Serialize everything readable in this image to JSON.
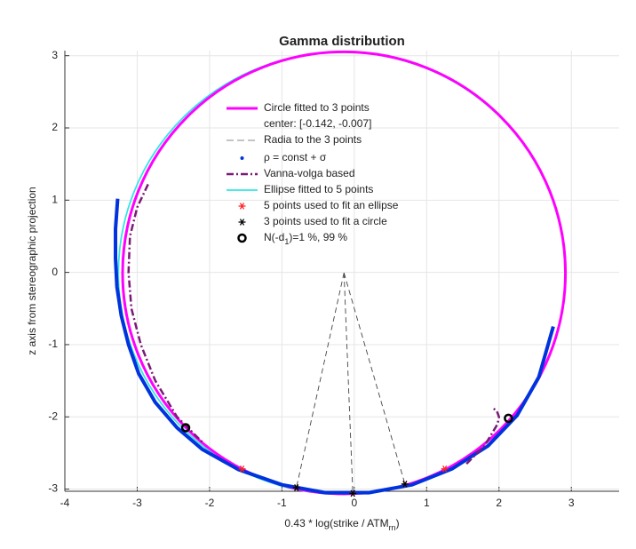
{
  "chart_data": {
    "type": "geometric-fit",
    "title": "Gamma distribution",
    "xlabel": [
      "0.43 * log(strike / ATM",
      "rn",
      ")"
    ],
    "ylabel": "z axis from stereographic projection",
    "xlim": [
      -4,
      3.66
    ],
    "ylim": [
      -3.03,
      3.07
    ],
    "xticks": [
      -4,
      -3,
      -2,
      -1,
      0,
      1,
      2,
      3
    ],
    "yticks": [
      -3,
      -2,
      -1,
      0,
      1,
      2,
      3
    ],
    "grid": true,
    "series": [
      {
        "name": "Circle fitted to 3 points",
        "name_line2": "center: [-0.142, -0.007]",
        "kind": "circle",
        "color": "#ff00ff",
        "center": [
          -0.142,
          -0.007
        ],
        "radius": 3.06
      },
      {
        "name": "Radia to the 3 points",
        "kind": "radia",
        "color": "#444444"
      },
      {
        "name": "ρ = const + σ",
        "kind": "dots",
        "color": "#0033dd",
        "x": [
          -3.27,
          -3.3,
          -3.3,
          -3.28,
          -3.22,
          -3.12,
          -2.98,
          -2.75,
          -2.45,
          -2.1,
          -1.6,
          -1.0,
          -0.4,
          0.2,
          0.8,
          1.35,
          1.85,
          2.25,
          2.55,
          2.75
        ],
        "y": [
          1.02,
          0.6,
          0.2,
          -0.2,
          -0.6,
          -1.0,
          -1.4,
          -1.8,
          -2.15,
          -2.45,
          -2.73,
          -2.94,
          -3.05,
          -3.05,
          -2.94,
          -2.72,
          -2.4,
          -1.98,
          -1.45,
          -0.75
        ]
      },
      {
        "name": "Vanna-volga based",
        "kind": "dashdot",
        "color": "#7a1a78",
        "x": [
          -2.85,
          -3.0,
          -3.1,
          -3.12,
          -3.08,
          -2.95,
          -2.75,
          -2.45,
          -2.1,
          null,
          1.55,
          1.8,
          1.98,
          2.0,
          1.97,
          1.92
        ],
        "y": [
          1.22,
          0.9,
          0.5,
          0.0,
          -0.5,
          -1.0,
          -1.5,
          -2.0,
          -2.35,
          null,
          -2.65,
          -2.4,
          -2.1,
          -2.0,
          -1.92,
          -1.88
        ]
      },
      {
        "name": "Ellipse fitted to 5 points",
        "kind": "ellipse",
        "color": "#33e6e6",
        "center": [
          -0.17,
          -0.01
        ],
        "radii": [
          3.09,
          3.06
        ]
      },
      {
        "name": "5 points used to fit an ellipse",
        "kind": "star",
        "color": "#ff2222",
        "x": [
          -1.55,
          -0.8,
          -0.02,
          0.7,
          1.25
        ],
        "y": [
          -2.72,
          -2.98,
          -3.06,
          -2.93,
          -2.72
        ]
      },
      {
        "name": "3 points used to fit a circle",
        "kind": "star",
        "color": "#000000",
        "x": [
          -0.8,
          -0.02,
          0.7
        ],
        "y": [
          -2.98,
          -3.06,
          -2.93
        ]
      },
      {
        "name": [
          "N(-d",
          "1",
          ")=1 %, 99 %"
        ],
        "kind": "ring",
        "color": "#000000",
        "x": [
          -2.33,
          2.13
        ],
        "y": [
          -2.15,
          -2.02
        ]
      }
    ]
  }
}
